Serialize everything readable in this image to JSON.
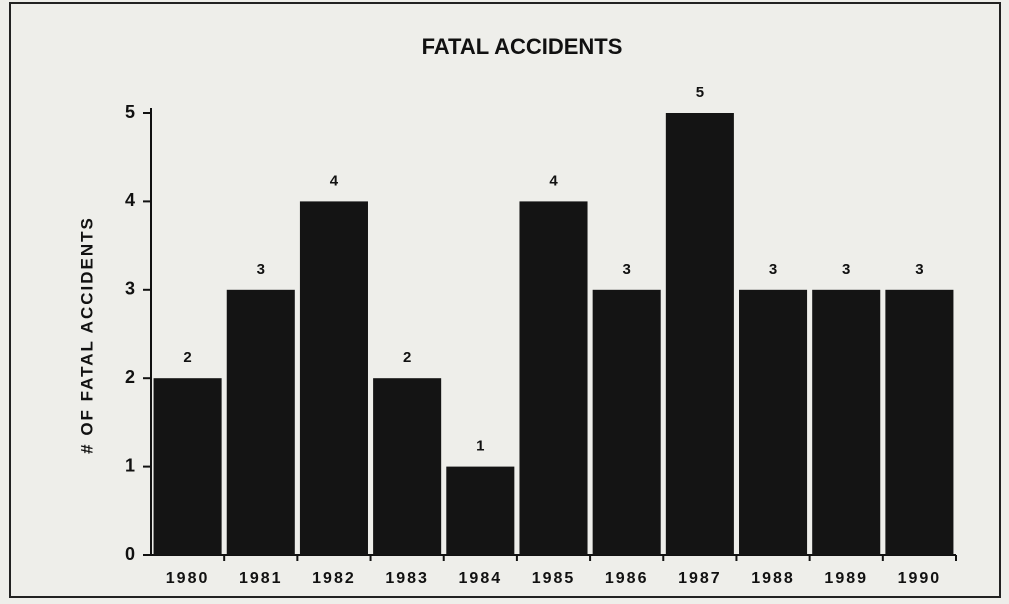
{
  "chart_data": {
    "type": "bar",
    "title": "FATAL ACCIDENTS",
    "ylabel": "# OF FATAL ACCIDENTS",
    "categories": [
      "1980",
      "1981",
      "1982",
      "1983",
      "1984",
      "1985",
      "1986",
      "1987",
      "1988",
      "1989",
      "1990"
    ],
    "values": [
      2,
      3,
      4,
      2,
      1,
      4,
      3,
      5,
      3,
      3,
      3
    ],
    "color": "#141414",
    "ylim": [
      0,
      5
    ],
    "yticks": [
      0,
      1,
      2,
      3,
      4,
      5
    ],
    "grid": false
  }
}
